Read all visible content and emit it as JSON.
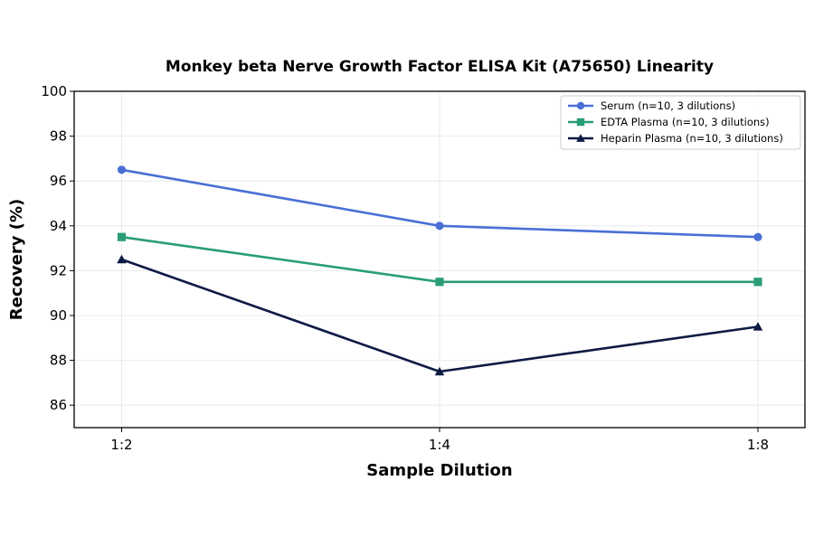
{
  "chart_data": {
    "type": "line",
    "title": "Monkey beta Nerve Growth Factor ELISA Kit (A75650) Linearity",
    "xlabel": "Sample Dilution",
    "ylabel": "Recovery (%)",
    "categories": [
      "1:2",
      "1:4",
      "1:8"
    ],
    "ylim": [
      85,
      100
    ],
    "yticks": [
      "86",
      "88",
      "90",
      "92",
      "94",
      "96",
      "98",
      "100"
    ],
    "grid": true,
    "legend_position": "top-right",
    "series": [
      {
        "name": "Serum (n=10, 3 dilutions)",
        "values": [
          96.5,
          94.0,
          93.5
        ],
        "color": "#4a6fd6",
        "marker": "circle"
      },
      {
        "name": "EDTA Plasma (n=10, 3 dilutions)",
        "values": [
          93.5,
          91.5,
          91.5
        ],
        "color": "#2a9d78",
        "marker": "square"
      },
      {
        "name": "Heparin Plasma (n=10, 3 dilutions)",
        "values": [
          92.5,
          87.5,
          89.5
        ],
        "color": "#0d1a45",
        "marker": "triangle"
      }
    ]
  }
}
